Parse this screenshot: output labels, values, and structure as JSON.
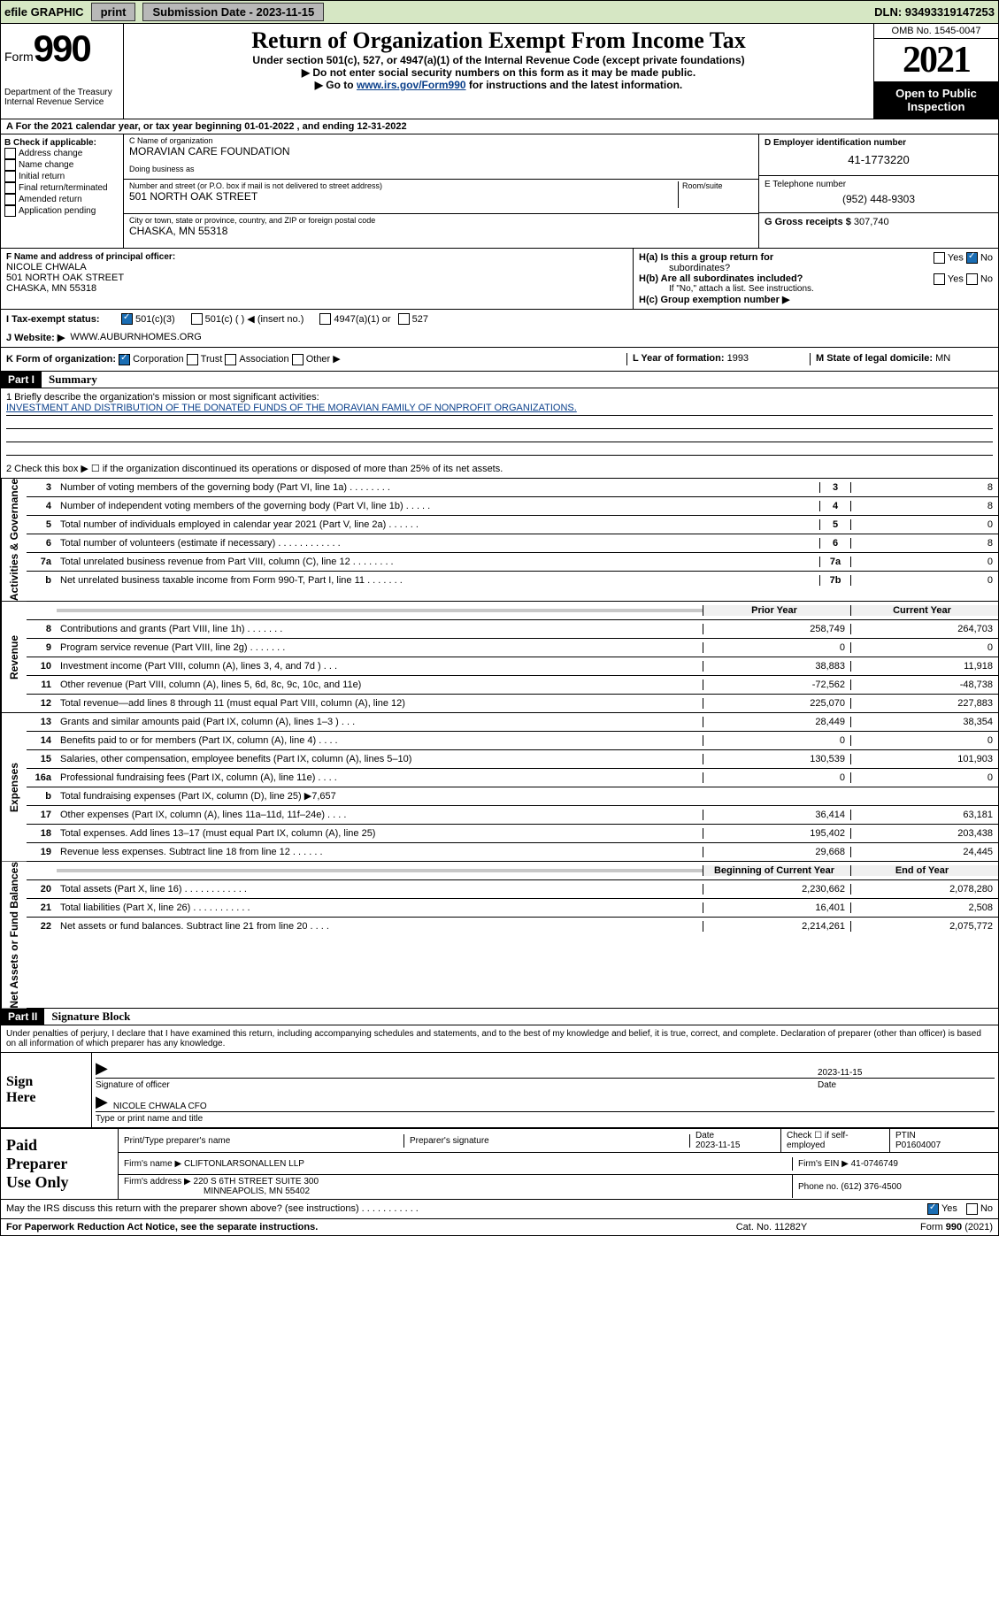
{
  "topbar": {
    "efile": "efile GRAPHIC",
    "print": "print",
    "subdate_label": "Submission Date - 2023-11-15",
    "dln": "DLN: 93493319147253"
  },
  "header": {
    "form_word": "Form",
    "form_num": "990",
    "title": "Return of Organization Exempt From Income Tax",
    "subtitle1": "Under section 501(c), 527, or 4947(a)(1) of the Internal Revenue Code (except private foundations)",
    "subtitle2": "▶ Do not enter social security numbers on this form as it may be made public.",
    "subtitle3_pre": "▶ Go to ",
    "subtitle3_link": "www.irs.gov/Form990",
    "subtitle3_post": " for instructions and the latest information.",
    "omb": "OMB No. 1545-0047",
    "year": "2021",
    "inspect": "Open to Public Inspection",
    "dept": "Department of the Treasury",
    "irs": "Internal Revenue Service"
  },
  "lineA": "For the 2021 calendar year, or tax year beginning 01-01-2022  , and ending 12-31-2022",
  "boxB": {
    "label": "B Check if applicable:",
    "items": [
      "Address change",
      "Name change",
      "Initial return",
      "Final return/terminated",
      "Amended return",
      "Application pending"
    ]
  },
  "boxC": {
    "name_label": "C Name of organization",
    "name": "MORAVIAN CARE FOUNDATION",
    "dba_label": "Doing business as",
    "dba": "",
    "addr_label": "Number and street (or P.O. box if mail is not delivered to street address)",
    "room_label": "Room/suite",
    "addr": "501 NORTH OAK STREET",
    "city_label": "City or town, state or province, country, and ZIP or foreign postal code",
    "city": "CHASKA, MN  55318"
  },
  "boxD": {
    "label": "D Employer identification number",
    "val": "41-1773220"
  },
  "boxE": {
    "label": "E Telephone number",
    "val": "(952) 448-9303"
  },
  "boxG": {
    "label": "G Gross receipts $",
    "val": "307,740"
  },
  "boxF": {
    "label": "F Name and address of principal officer:",
    "name": "NICOLE CHWALA",
    "addr1": "501 NORTH OAK STREET",
    "addr2": "CHASKA, MN  55318"
  },
  "boxH": {
    "a_label": "H(a)  Is this a group return for",
    "a_label2": "subordinates?",
    "a_yes": "Yes",
    "a_no": "No",
    "b_label": "H(b)  Are all subordinates included?",
    "b_note": "If \"No,\" attach a list. See instructions.",
    "c_label": "H(c)  Group exemption number ▶"
  },
  "boxI": {
    "label": "I  Tax-exempt status:",
    "opts": [
      "501(c)(3)",
      "501(c) (  ) ◀ (insert no.)",
      "4947(a)(1) or",
      "527"
    ]
  },
  "boxJ": {
    "label": "J  Website: ▶",
    "val": "WWW.AUBURNHOMES.ORG"
  },
  "boxK": {
    "label": "K Form of organization:",
    "opts": [
      "Corporation",
      "Trust",
      "Association",
      "Other ▶"
    ]
  },
  "boxL": {
    "label": "L Year of formation:",
    "val": "1993"
  },
  "boxM": {
    "label": "M State of legal domicile:",
    "val": "MN"
  },
  "part1": {
    "hdr": "Part I",
    "title": "Summary",
    "line1_label": "1   Briefly describe the organization's mission or most significant activities:",
    "line1_val": "INVESTMENT AND DISTRIBUTION OF THE DONATED FUNDS OF THE MORAVIAN FAMILY OF NONPROFIT ORGANIZATIONS.",
    "line2": "2   Check this box ▶ ☐  if the organization discontinued its operations or disposed of more than 25% of its net assets."
  },
  "gov_lines": [
    {
      "n": "3",
      "desc": "Number of voting members of the governing body (Part VI, line 1a)  .    .    .    .    .    .    .    .",
      "box": "3",
      "v": "8"
    },
    {
      "n": "4",
      "desc": "Number of independent voting members of the governing body (Part VI, line 1b)    .    .    .    .    .",
      "box": "4",
      "v": "8"
    },
    {
      "n": "5",
      "desc": "Total number of individuals employed in calendar year 2021 (Part V, line 2a)  .    .    .    .    .    .",
      "box": "5",
      "v": "0"
    },
    {
      "n": "6",
      "desc": "Total number of volunteers (estimate if necessary)   .    .    .    .    .    .    .    .    .    .    .    .",
      "box": "6",
      "v": "8"
    },
    {
      "n": "7a",
      "desc": "Total unrelated business revenue from Part VIII, column (C), line 12   .    .    .    .    .    .    .    .",
      "box": "7a",
      "v": "0"
    },
    {
      "n": "b",
      "desc": "Net unrelated business taxable income from Form 990-T, Part I, line 11   .    .    .    .    .    .    .",
      "box": "7b",
      "v": "0"
    }
  ],
  "col_hdrs": {
    "prior": "Prior Year",
    "current": "Current Year"
  },
  "revenue": [
    {
      "n": "8",
      "desc": "Contributions and grants (Part VIII, line 1h)   .    .    .    .    .    .    .",
      "p": "258,749",
      "c": "264,703"
    },
    {
      "n": "9",
      "desc": "Program service revenue (Part VIII, line 2g)   .    .    .    .    .    .    .",
      "p": "0",
      "c": "0"
    },
    {
      "n": "10",
      "desc": "Investment income (Part VIII, column (A), lines 3, 4, and 7d )    .    .    .",
      "p": "38,883",
      "c": "11,918"
    },
    {
      "n": "11",
      "desc": "Other revenue (Part VIII, column (A), lines 5, 6d, 8c, 9c, 10c, and 11e)",
      "p": "-72,562",
      "c": "-48,738"
    },
    {
      "n": "12",
      "desc": "Total revenue—add lines 8 through 11 (must equal Part VIII, column (A), line 12)",
      "p": "225,070",
      "c": "227,883"
    }
  ],
  "expenses": [
    {
      "n": "13",
      "desc": "Grants and similar amounts paid (Part IX, column (A), lines 1–3 )   .    .    .",
      "p": "28,449",
      "c": "38,354"
    },
    {
      "n": "14",
      "desc": "Benefits paid to or for members (Part IX, column (A), line 4)   .    .    .    .",
      "p": "0",
      "c": "0"
    },
    {
      "n": "15",
      "desc": "Salaries, other compensation, employee benefits (Part IX, column (A), lines 5–10)",
      "p": "130,539",
      "c": "101,903"
    },
    {
      "n": "16a",
      "desc": "Professional fundraising fees (Part IX, column (A), line 11e)   .    .    .    .",
      "p": "0",
      "c": "0"
    },
    {
      "n": "b",
      "desc": "Total fundraising expenses (Part IX, column (D), line 25) ▶7,657",
      "p": "",
      "c": "",
      "grey": true
    },
    {
      "n": "17",
      "desc": "Other expenses (Part IX, column (A), lines 11a–11d, 11f–24e)   .    .    .    .",
      "p": "36,414",
      "c": "63,181"
    },
    {
      "n": "18",
      "desc": "Total expenses. Add lines 13–17 (must equal Part IX, column (A), line 25)",
      "p": "195,402",
      "c": "203,438"
    },
    {
      "n": "19",
      "desc": "Revenue less expenses. Subtract line 18 from line 12   .    .    .    .    .    .",
      "p": "29,668",
      "c": "24,445"
    }
  ],
  "na_hdrs": {
    "beg": "Beginning of Current Year",
    "end": "End of Year"
  },
  "netassets": [
    {
      "n": "20",
      "desc": "Total assets (Part X, line 16)   .    .    .    .    .    .    .    .    .    .    .    .",
      "p": "2,230,662",
      "c": "2,078,280"
    },
    {
      "n": "21",
      "desc": "Total liabilities (Part X, line 26)   .    .    .    .    .    .    .    .    .    .    .",
      "p": "16,401",
      "c": "2,508"
    },
    {
      "n": "22",
      "desc": "Net assets or fund balances. Subtract line 21 from line 20   .    .    .    .",
      "p": "2,214,261",
      "c": "2,075,772"
    }
  ],
  "part2": {
    "hdr": "Part II",
    "title": "Signature Block",
    "decl": "Under penalties of perjury, I declare that I have examined this return, including accompanying schedules and statements, and to the best of my knowledge and belief, it is true, correct, and complete. Declaration of preparer (other than officer) is based on all information of which preparer has any knowledge."
  },
  "sign": {
    "block": "Sign Here",
    "sig_of_officer": "Signature of officer",
    "date_label": "Date",
    "date": "2023-11-15",
    "name": "NICOLE CHWALA CFO",
    "name_label": "Type or print name and title"
  },
  "prep": {
    "block": "Paid Preparer Use Only",
    "print_name_label": "Print/Type preparer's name",
    "prep_sig_label": "Preparer's signature",
    "date_label": "Date",
    "date": "2023-11-15",
    "check_label": "Check ☐ if self-employed",
    "ptin_label": "PTIN",
    "ptin": "P01604007",
    "firm_name_label": "Firm's name    ▶",
    "firm_name": "CLIFTONLARSONALLEN LLP",
    "firm_ein_label": "Firm's EIN ▶",
    "firm_ein": "41-0746749",
    "firm_addr_label": "Firm's address ▶",
    "firm_addr1": "220 S 6TH STREET SUITE 300",
    "firm_addr2": "MINNEAPOLIS, MN  55402",
    "phone_label": "Phone no.",
    "phone": "(612) 376-4500"
  },
  "may_irs": {
    "q": "May the IRS discuss this return with the preparer shown above? (see instructions)   .    .    .    .    .    .    .    .    .    .    .",
    "yes": "Yes",
    "no": "No"
  },
  "footer": {
    "left": "For Paperwork Reduction Act Notice, see the separate instructions.",
    "mid": "Cat. No. 11282Y",
    "right_pre": "Form ",
    "right_form": "990",
    "right_post": " (2021)"
  },
  "vtabs": {
    "gov": "Activities & Governance",
    "rev": "Revenue",
    "exp": "Expenses",
    "na": "Net Assets or Fund Balances"
  }
}
